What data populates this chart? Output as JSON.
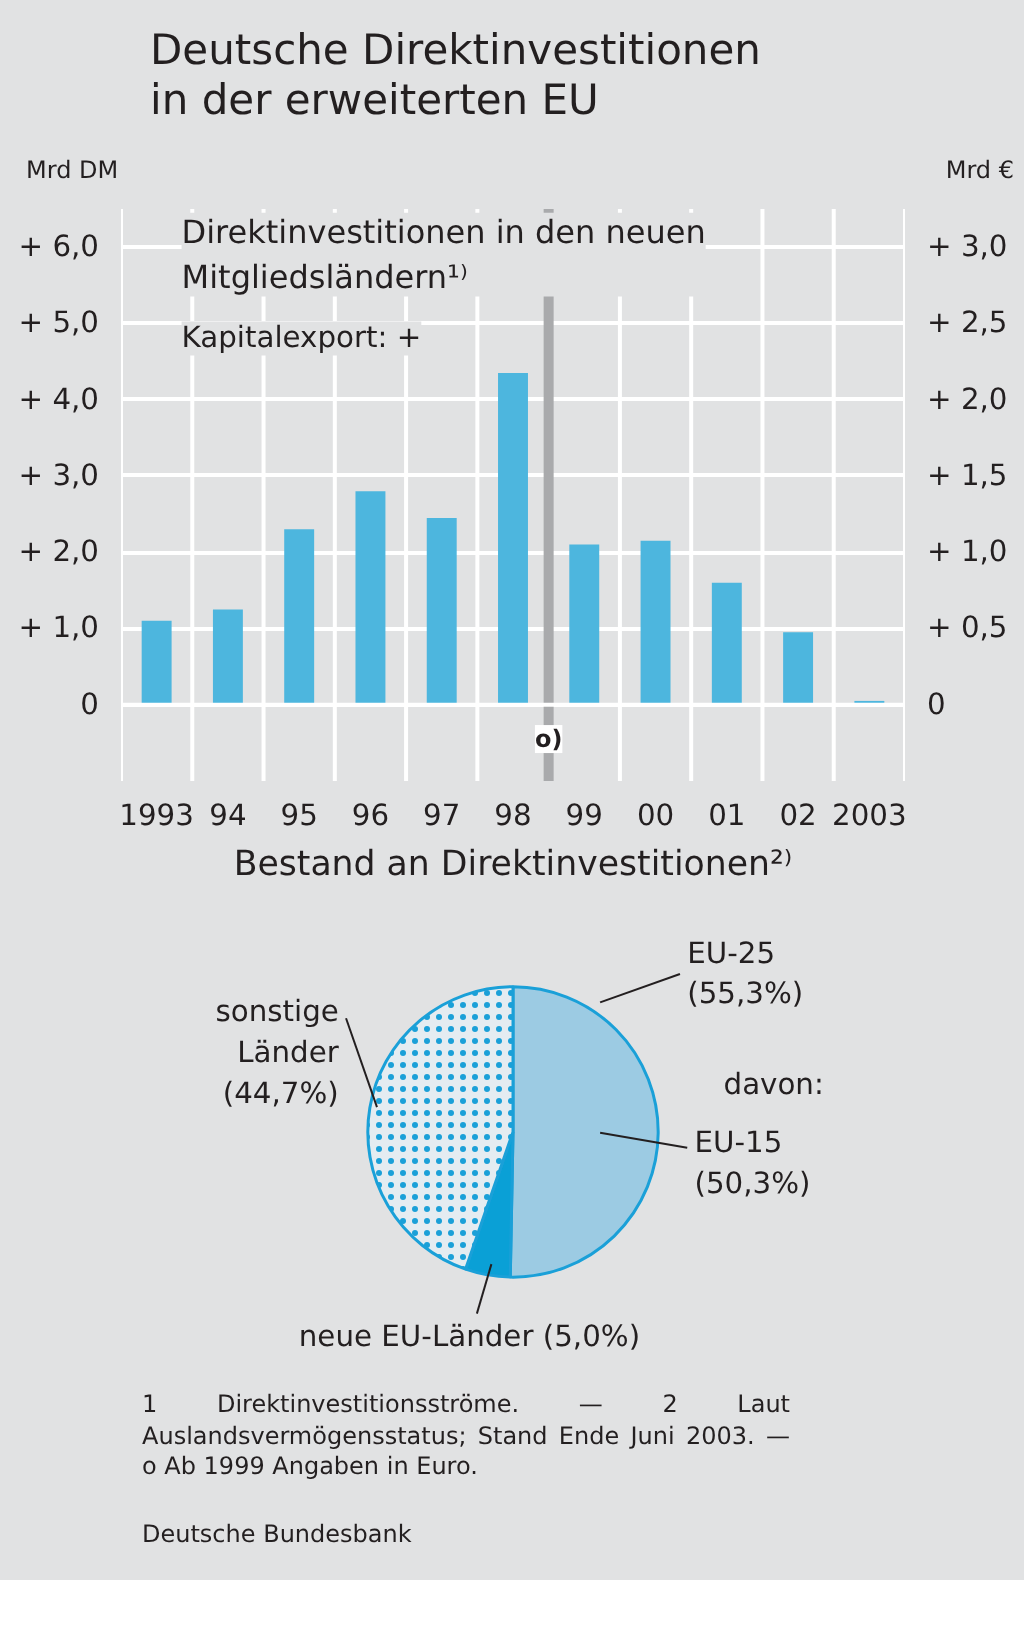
{
  "chart_data": [
    {
      "type": "bar",
      "title": "Deutsche Direktinvestitionen in der erweiterten EU",
      "subtitle": "Direktinvestitionen in den neuen Mitgliedsländern¹⁾",
      "annotations": [
        "Kapitalexport: +"
      ],
      "ylabel": "Mrd DM",
      "y2label": "Mrd €",
      "x": [
        1993,
        1994,
        1995,
        1996,
        1997,
        1998,
        1999,
        2000,
        2001,
        2002,
        2003
      ],
      "values": [
        1.1,
        1.25,
        2.3,
        2.8,
        2.45,
        4.35,
        2.1,
        2.15,
        1.6,
        0.95,
        0.05
      ],
      "color": "#4db6de",
      "xlim": [
        1992.5,
        2003.5
      ],
      "xticks": [
        {
          "value": 1993,
          "label": "1993"
        },
        {
          "value": 1994,
          "label": "94"
        },
        {
          "value": 1995,
          "label": "95"
        },
        {
          "value": 1996,
          "label": "96"
        },
        {
          "value": 1997,
          "label": "97"
        },
        {
          "value": 1998,
          "label": "98"
        },
        {
          "value": 1999,
          "label": "99"
        },
        {
          "value": 2000,
          "label": "00"
        },
        {
          "value": 2001,
          "label": "01"
        },
        {
          "value": 2002,
          "label": "02"
        },
        {
          "value": 2003,
          "label": "2003"
        }
      ],
      "ylim": [
        -1,
        6.5
      ],
      "yticks": [
        0,
        {
          "value": 1,
          "label": "+ 1,0"
        },
        {
          "value": 2,
          "label": "+ 2,0"
        },
        {
          "value": 3,
          "label": "+ 3,0"
        },
        {
          "value": 4,
          "label": "+ 4,0"
        },
        {
          "value": 5,
          "label": "+ 5,0"
        },
        {
          "value": 6,
          "label": "+ 6,0"
        }
      ],
      "y2lim": [
        -0.5,
        3.25
      ],
      "y2ticks": [
        0,
        {
          "value": 0.5,
          "label": "+ 0,5"
        },
        {
          "value": 1,
          "label": "+ 1,0"
        },
        {
          "value": 1.5,
          "label": "+ 1,5"
        },
        {
          "value": 2,
          "label": "+ 2,0"
        },
        {
          "value": 2.5,
          "label": "+ 2,5"
        },
        {
          "value": 3,
          "label": "+ 3,0"
        }
      ],
      "ref_lines": [
        {
          "axis": "x",
          "value": 1998.5,
          "label": "o)",
          "color": "#a9aaac"
        }
      ],
      "grid": true
    },
    {
      "type": "pie",
      "title": "Bestand an Direktinvestitionen²⁾",
      "categories": [
        "EU-15",
        "neue EU-Länder",
        "sonstige Länder"
      ],
      "values": [
        50.3,
        5.0,
        44.7
      ],
      "value_labels": [
        "(50,3%)",
        "(5,0%)",
        "(44,7%)"
      ],
      "colors": [
        "#9ccbe3",
        "#0aa0d6",
        "#e4ecf1"
      ],
      "annotations": [
        "EU-25 (55,3%)",
        "davon:",
        "1 Direktinvestitionsströme. — 2 Laut Auslandsvermögensstatus; Stand Ende Juni 2003. — o Ab 1999 Angaben in Euro.",
        "Deutsche Bundesbank"
      ]
    }
  ]
}
